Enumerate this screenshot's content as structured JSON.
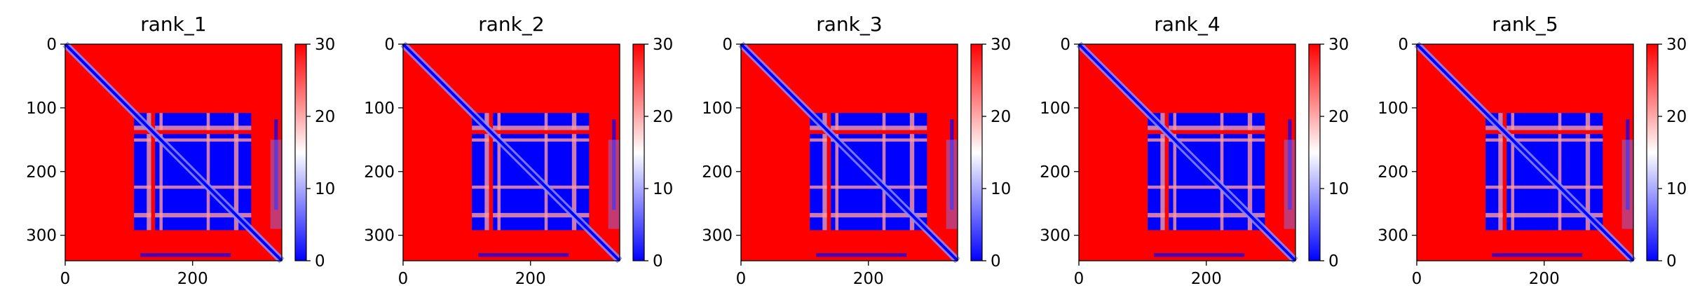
{
  "chart_data": [
    {
      "type": "heatmap",
      "title": "rank_1",
      "colormap": "bwr",
      "vmin": 0,
      "vmax": 30,
      "matrix_size": 340,
      "x_ticks": [
        0,
        200
      ],
      "y_ticks": [
        0,
        100,
        200,
        300
      ],
      "colorbar_ticks": [
        0,
        10,
        20,
        30
      ]
    },
    {
      "type": "heatmap",
      "title": "rank_2",
      "colormap": "bwr",
      "vmin": 0,
      "vmax": 30,
      "matrix_size": 340,
      "x_ticks": [
        0,
        200
      ],
      "y_ticks": [
        0,
        100,
        200,
        300
      ],
      "colorbar_ticks": [
        0,
        10,
        20,
        30
      ]
    },
    {
      "type": "heatmap",
      "title": "rank_3",
      "colormap": "bwr",
      "vmin": 0,
      "vmax": 30,
      "matrix_size": 340,
      "x_ticks": [
        0,
        200
      ],
      "y_ticks": [
        0,
        100,
        200,
        300
      ],
      "colorbar_ticks": [
        0,
        10,
        20,
        30
      ]
    },
    {
      "type": "heatmap",
      "title": "rank_4",
      "colormap": "bwr",
      "vmin": 0,
      "vmax": 30,
      "matrix_size": 340,
      "x_ticks": [
        0,
        200
      ],
      "y_ticks": [
        0,
        100,
        200,
        300
      ],
      "colorbar_ticks": [
        0,
        10,
        20,
        30
      ]
    },
    {
      "type": "heatmap",
      "title": "rank_5",
      "colormap": "bwr",
      "vmin": 0,
      "vmax": 30,
      "matrix_size": 340,
      "x_ticks": [
        0,
        200
      ],
      "y_ticks": [
        0,
        100,
        200,
        300
      ],
      "colorbar_ticks": [
        0,
        10,
        20,
        30
      ]
    }
  ]
}
